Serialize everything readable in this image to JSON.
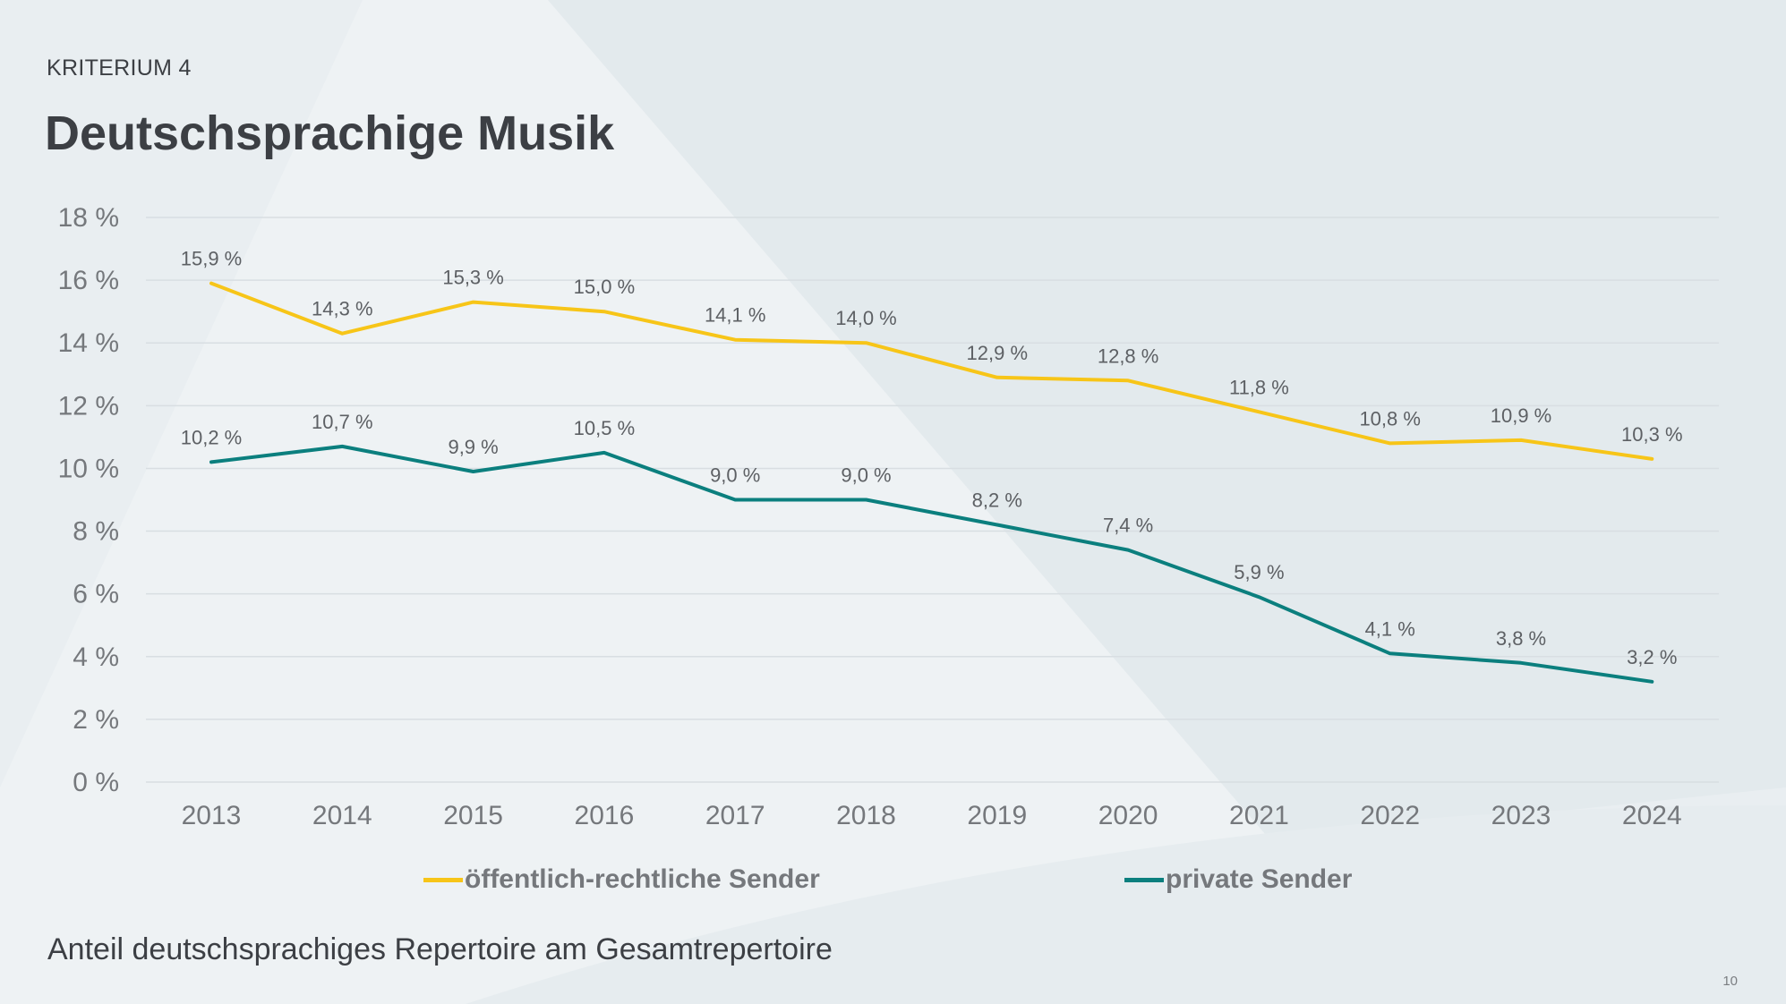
{
  "header": {
    "kicker": "KRITERIUM 4",
    "title": "Deutschsprachige Musik"
  },
  "footer": {
    "subtitle": "Anteil deutschsprachiges Repertoire am Gesamtrepertoire",
    "page_number": "10"
  },
  "colors": {
    "background": "#e9eef1",
    "public_series": "#f7c518",
    "private_series": "#0b7f7e",
    "gridline": "#d8dee2",
    "text_dark": "#3c3f44",
    "text_muted": "#75787c"
  },
  "chart_data": {
    "type": "line",
    "title": "",
    "xlabel": "",
    "ylabel": "",
    "ylim": [
      0,
      18
    ],
    "y_ticks": [
      0,
      2,
      4,
      6,
      8,
      10,
      12,
      14,
      16,
      18
    ],
    "y_tick_labels": [
      "0 %",
      "2 %",
      "4 %",
      "6 %",
      "8 %",
      "10 %",
      "12 %",
      "14 %",
      "16 %",
      "18 %"
    ],
    "grid": true,
    "legend_position": "bottom",
    "categories": [
      "2013",
      "2014",
      "2015",
      "2016",
      "2017",
      "2018",
      "2019",
      "2020",
      "2021",
      "2022",
      "2023",
      "2024"
    ],
    "series": [
      {
        "name": "öffentlich-rechtliche Sender",
        "color": "#f7c518",
        "values": [
          15.9,
          14.3,
          15.3,
          15.0,
          14.1,
          14.0,
          12.9,
          12.8,
          11.8,
          10.8,
          10.9,
          10.3
        ],
        "labels": [
          "15,9 %",
          "14,3 %",
          "15,3 %",
          "15,0 %",
          "14,1 %",
          "14,0 %",
          "12,9 %",
          "12,8 %",
          "11,8 %",
          "10,8 %",
          "10,9 %",
          "10,3 %"
        ]
      },
      {
        "name": "private Sender",
        "color": "#0b7f7e",
        "values": [
          10.2,
          10.7,
          9.9,
          10.5,
          9.0,
          9.0,
          8.2,
          7.4,
          5.9,
          4.1,
          3.8,
          3.2
        ],
        "labels": [
          "10,2 %",
          "10,7 %",
          "9,9 %",
          "10,5 %",
          "9,0 %",
          "9,0 %",
          "8,2 %",
          "7,4 %",
          "5,9 %",
          "4,1 %",
          "3,8 %",
          "3,2 %"
        ]
      }
    ]
  }
}
